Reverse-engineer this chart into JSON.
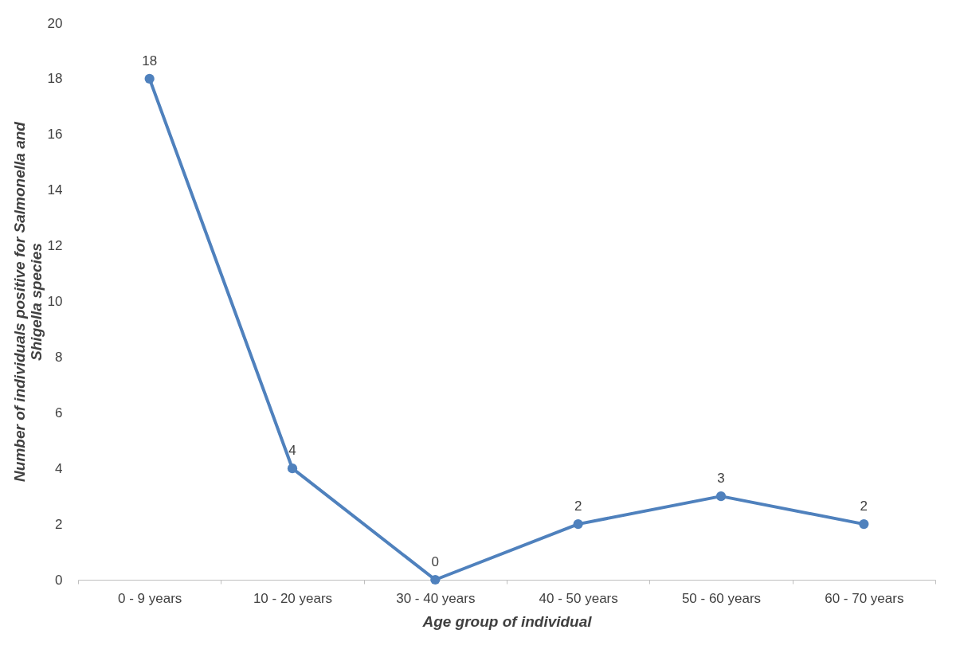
{
  "chart_data": {
    "type": "line",
    "xlabel": "Age group of individual",
    "ylabel": "Number of individuals positive for Salmonella and Shigella species",
    "categories": [
      "0 - 9 years",
      "10 - 20 years",
      "30 - 40 years",
      "40 - 50 years",
      "50 - 60 years",
      "60 - 70 years"
    ],
    "series": [
      {
        "color": "#4f81bd",
        "values": [
          18,
          4,
          0,
          2,
          3,
          2
        ]
      }
    ],
    "ylim": [
      0,
      20
    ],
    "yticks": [
      0,
      2,
      4,
      6,
      8,
      10,
      12,
      14,
      16,
      18,
      20
    ],
    "grid": false,
    "marker": "circle",
    "line_style": "solid",
    "data_labels": true
  }
}
